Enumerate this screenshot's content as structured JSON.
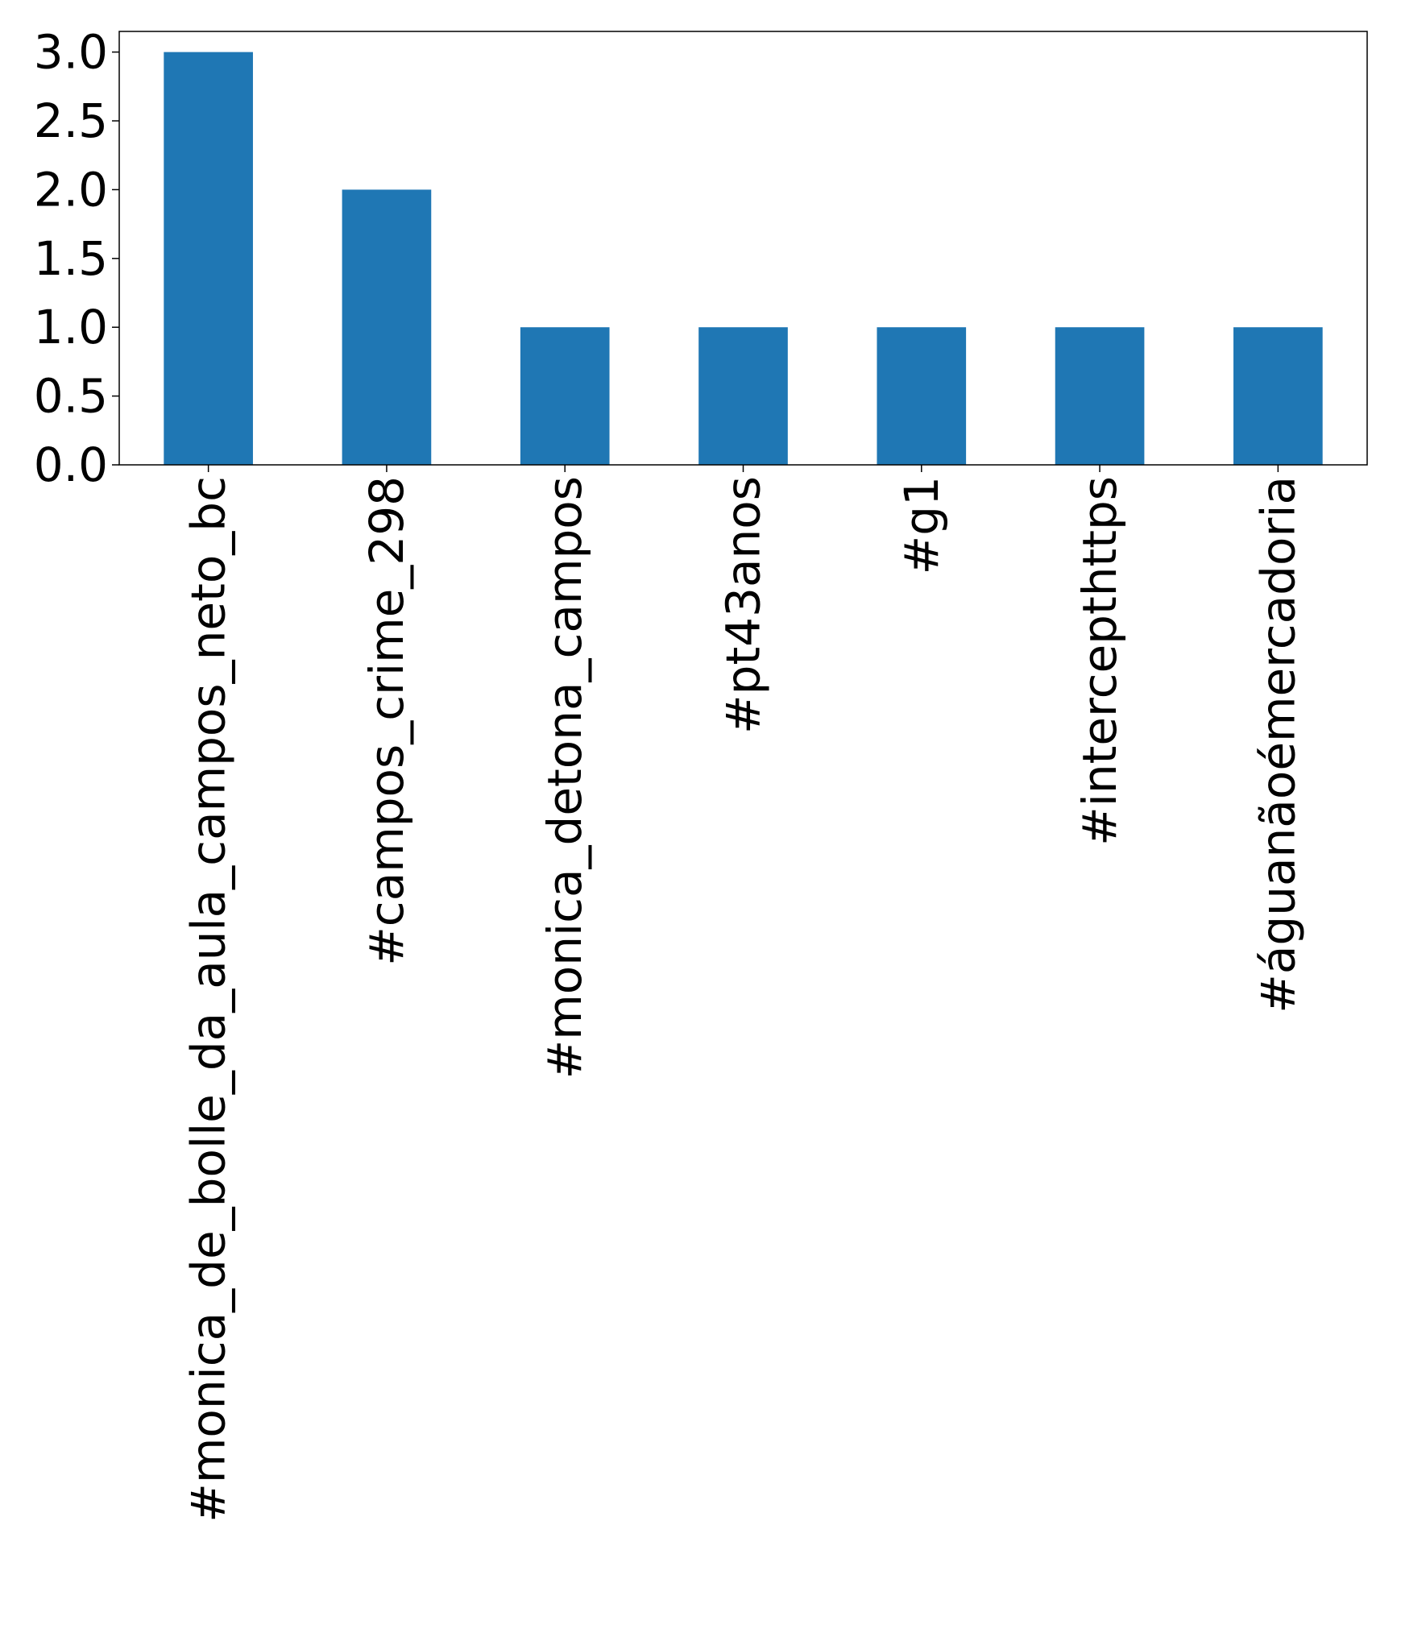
{
  "chart_data": {
    "type": "bar",
    "categories": [
      "#monica_de_bolle_da_aula_campos_neto_bc",
      "#campos_crime_298",
      "#monica_detona_campos",
      "#pt43anos",
      "#g1",
      "#intercepthttps",
      "#águanãoémercadoria"
    ],
    "values": [
      3,
      2,
      1,
      1,
      1,
      1,
      1
    ],
    "ylim": [
      0,
      3.15
    ],
    "yticks": [
      "0.0",
      "0.5",
      "1.0",
      "1.5",
      "2.0",
      "2.5",
      "3.0"
    ],
    "title": "",
    "xlabel": "",
    "ylabel": "",
    "grid": false,
    "legend": "none",
    "bar_color": "#1f77b4"
  }
}
